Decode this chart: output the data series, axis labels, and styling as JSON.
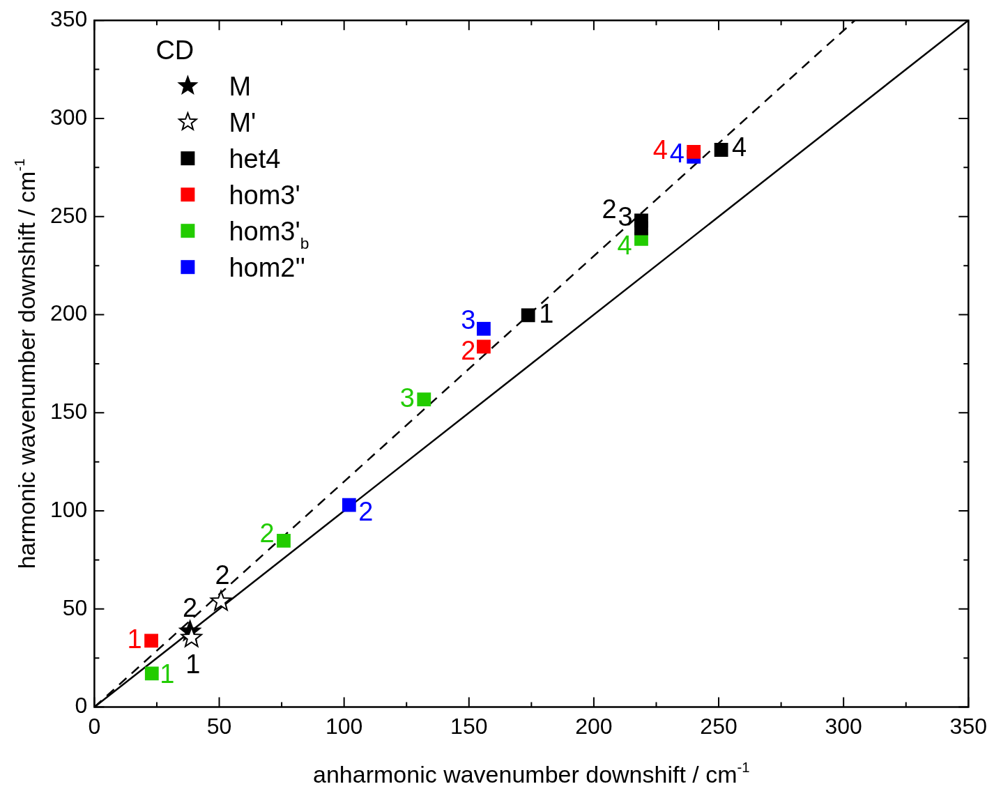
{
  "chart_data": {
    "type": "scatter",
    "xlabel": "anharmonic wavenumber downshift / cm$^{-1}$",
    "ylabel": "harmonic wavenumber downshift / cm$^{-1}$",
    "legend": "top left",
    "legend_title": "CD",
    "xlim": [
      0,
      350
    ],
    "ylim": [
      0,
      350
    ],
    "xticks": [
      0,
      {
        "value": 25,
        "label": null
      },
      50,
      {
        "value": 75,
        "label": null
      },
      100,
      {
        "value": 125,
        "label": null
      },
      150,
      {
        "value": 175,
        "label": null
      },
      200,
      {
        "value": 225,
        "label": null
      },
      250,
      {
        "value": 275,
        "label": null
      },
      300,
      {
        "value": 325,
        "label": null
      },
      350
    ],
    "yticks": [
      0,
      {
        "value": 25,
        "label": null
      },
      50,
      {
        "value": 75,
        "label": null
      },
      100,
      {
        "value": 125,
        "label": null
      },
      150,
      {
        "value": 175,
        "label": null
      },
      200,
      {
        "value": 225,
        "label": null
      },
      250,
      {
        "value": 275,
        "label": null
      },
      300,
      {
        "value": 325,
        "label": null
      },
      350
    ],
    "series": [
      {
        "name": "M",
        "marker": "star",
        "color": "#000000",
        "x": [
          38.3
        ],
        "values": [
          38.5
        ]
      },
      {
        "name": "M'",
        "marker": "star",
        "color": "#ffffff",
        "x": [
          38.9,
          50.7
        ],
        "values": [
          35.3,
          53.8
        ]
      },
      {
        "name": "het4",
        "marker": "square",
        "color": "#000000",
        "x": [
          173.7,
          219,
          219,
          251
        ],
        "values": [
          199.7,
          248,
          244,
          284
        ]
      },
      {
        "name": "hom3'",
        "marker": "square",
        "color": "#ff0000",
        "x": [
          22.8,
          155.9,
          240
        ],
        "values": [
          33.8,
          183.7,
          283
        ]
      },
      {
        "name": "hom3'$_{b}$",
        "marker": "square",
        "color": "#22cc00",
        "x": [
          23,
          75.8,
          132,
          219
        ],
        "values": [
          17.1,
          84.8,
          156.8,
          238.6
        ]
      },
      {
        "name": "hom2''",
        "marker": "square",
        "color": "#0000ff",
        "x": [
          102,
          155.9,
          240
        ],
        "values": [
          103,
          192.8,
          280.5
        ]
      },
      {
        "type": "line",
        "line_style": "solid",
        "color": "#000000",
        "x": [
          0,
          350
        ],
        "values": [
          0,
          350
        ]
      },
      {
        "type": "line",
        "line_style": "dashed",
        "color": "#000000",
        "x": [
          0,
          304.5
        ],
        "values": [
          0,
          350
        ]
      }
    ],
    "annotations": [
      {
        "text": "2",
        "x": 38.3,
        "y": 38.5
      },
      {
        "text": "1",
        "x": 38.9,
        "y": 35.3
      },
      {
        "text": "2",
        "x": 50.7,
        "y": 53.8
      },
      {
        "text": "1",
        "x": 173.7,
        "y": 199.7
      },
      {
        "text": "2",
        "x": 219,
        "y": 248
      },
      {
        "text": "3",
        "x": 219,
        "y": 244
      },
      {
        "text": "4",
        "x": 251,
        "y": 284
      },
      {
        "text": "1",
        "x": 22.8,
        "y": 33.8
      },
      {
        "text": "2",
        "x": 155.9,
        "y": 183.7
      },
      {
        "text": "4",
        "x": 240,
        "y": 283
      },
      {
        "text": "1",
        "x": 23,
        "y": 17.1
      },
      {
        "text": "2",
        "x": 75.8,
        "y": 84.8
      },
      {
        "text": "3",
        "x": 132,
        "y": 156.8
      },
      {
        "text": "4",
        "x": 219,
        "y": 238.6
      },
      {
        "text": "2",
        "x": 102,
        "y": 103
      },
      {
        "text": "3",
        "x": 155.9,
        "y": 192.8
      },
      {
        "text": "4",
        "x": 240,
        "y": 280.5
      }
    ]
  }
}
